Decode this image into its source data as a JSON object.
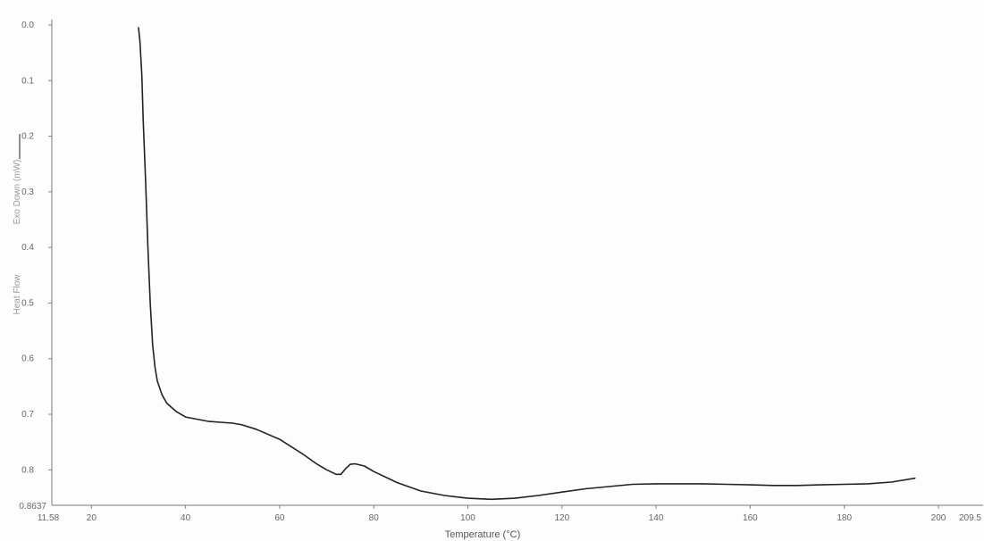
{
  "chart_data": {
    "type": "line",
    "title": "",
    "xlabel": "Temperature (°C)",
    "ylabel": "Heat Flow",
    "ylabel_direction": "Exo Down (mW)",
    "xlim": [
      11.58,
      209.5
    ],
    "ylim": [
      0.0,
      0.8637
    ],
    "y_inverted": true,
    "grid": false,
    "legend": "none",
    "x_ticks": [
      "20",
      "40",
      "60",
      "80",
      "100",
      "120",
      "140",
      "160",
      "180",
      "200"
    ],
    "x_tick_values": [
      20,
      40,
      60,
      80,
      100,
      120,
      140,
      160,
      180,
      200
    ],
    "x_end_labels": [
      "11.58",
      "209.5"
    ],
    "y_ticks": [
      "0.0",
      "0.1",
      "0.2",
      "0.3",
      "0.4",
      "0.5",
      "0.6",
      "0.7",
      "0.8"
    ],
    "y_tick_values": [
      0.0,
      0.1,
      0.2,
      0.3,
      0.4,
      0.5,
      0.6,
      0.7,
      0.8
    ],
    "y_end_label": "0.8637",
    "line_color": "#222222",
    "series": [
      {
        "x": [
          30.0,
          30.3,
          30.7,
          31.0,
          31.5,
          32.0,
          32.5,
          33.0,
          33.5,
          34.0,
          35.0,
          36.0,
          38.0,
          40.0,
          45.0,
          50.0,
          52.0,
          55.0,
          60.0,
          65.0,
          68.0,
          70.0,
          72.0,
          73.0,
          74.0,
          75.0,
          76.0,
          78.0,
          80.0,
          85.0,
          90.0,
          95.0,
          100.0,
          105.0,
          110.0,
          115.0,
          120.0,
          125.0,
          130.0,
          135.0,
          140.0,
          145.0,
          150.0,
          155.0,
          160.0,
          165.0,
          170.0,
          175.0,
          180.0,
          185.0,
          190.0,
          195.0
        ],
        "y": [
          0.005,
          0.03,
          0.09,
          0.17,
          0.28,
          0.4,
          0.5,
          0.575,
          0.615,
          0.64,
          0.665,
          0.68,
          0.695,
          0.705,
          0.713,
          0.716,
          0.719,
          0.727,
          0.745,
          0.772,
          0.79,
          0.8,
          0.808,
          0.808,
          0.798,
          0.79,
          0.789,
          0.793,
          0.803,
          0.823,
          0.838,
          0.846,
          0.851,
          0.853,
          0.851,
          0.846,
          0.84,
          0.834,
          0.83,
          0.826,
          0.825,
          0.825,
          0.825,
          0.826,
          0.827,
          0.828,
          0.828,
          0.827,
          0.826,
          0.825,
          0.822,
          0.815
        ]
      }
    ]
  }
}
